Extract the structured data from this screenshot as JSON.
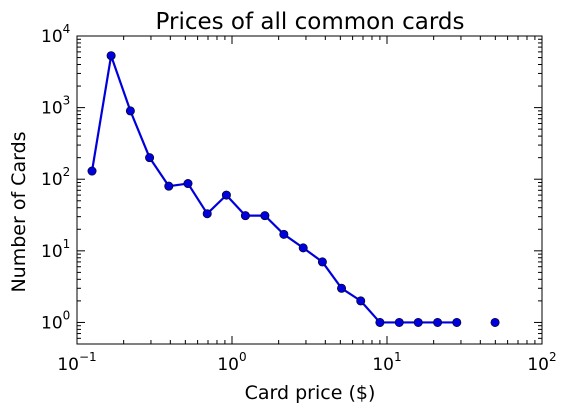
{
  "chart_data": {
    "type": "line",
    "title": "Prices of all common cards",
    "xlabel": "Card price ($)",
    "ylabel": "Number of Cards",
    "xscale": "log",
    "yscale": "log",
    "xlim": [
      0.1,
      100
    ],
    "ylim": [
      0.5,
      10000
    ],
    "grid": false,
    "legend": "none",
    "xticks": [
      {
        "value": 0.1,
        "base": "10",
        "exp": "−1"
      },
      {
        "value": 1,
        "base": "10",
        "exp": "0"
      },
      {
        "value": 10,
        "base": "10",
        "exp": "1"
      },
      {
        "value": 100,
        "base": "10",
        "exp": "2"
      }
    ],
    "yticks": [
      {
        "value": 1,
        "base": "10",
        "exp": "0"
      },
      {
        "value": 10,
        "base": "10",
        "exp": "1"
      },
      {
        "value": 100,
        "base": "10",
        "exp": "2"
      },
      {
        "value": 1000,
        "base": "10",
        "exp": "3"
      },
      {
        "value": 10000,
        "base": "10",
        "exp": "4"
      }
    ],
    "series": [
      {
        "color": "#0000dd",
        "marker": "circle",
        "points": [
          [
            0.125,
            130
          ],
          [
            0.166,
            5300
          ],
          [
            0.221,
            900
          ],
          [
            0.294,
            200
          ],
          [
            0.391,
            80
          ],
          [
            0.52,
            87
          ],
          [
            0.692,
            33
          ],
          [
            0.92,
            60
          ],
          [
            1.22,
            31
          ],
          [
            1.63,
            31
          ],
          [
            2.16,
            17
          ],
          [
            2.88,
            11
          ],
          [
            3.83,
            7
          ],
          [
            5.09,
            3
          ],
          [
            6.77,
            2
          ],
          [
            9.0,
            1
          ],
          [
            12.0,
            1
          ],
          [
            15.9,
            1
          ],
          [
            21.2,
            1
          ],
          [
            28.2,
            1
          ],
          [
            null,
            null
          ],
          [
            49.8,
            1
          ]
        ]
      }
    ]
  }
}
